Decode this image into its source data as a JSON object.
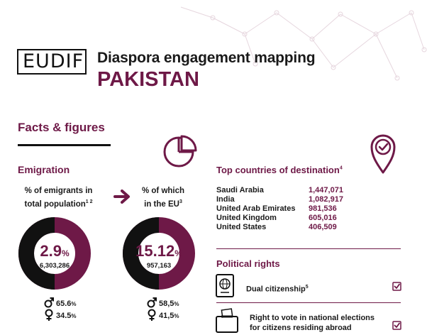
{
  "logo": {
    "text": "EUDIF"
  },
  "header": {
    "subtitle": "Diaspora engagement mapping",
    "country": "PAKISTAN"
  },
  "facts": {
    "title": "Facts & figures"
  },
  "emigration": {
    "title": "Emigration",
    "left": {
      "label_line1": "% of emigrants in",
      "label_line2": "total population",
      "label_sup": "1 2",
      "percent": "2.9",
      "percent_sign": "%",
      "count": "6,303,286",
      "male": "65.6",
      "female": "34.5",
      "share": 0.029
    },
    "right": {
      "label_line1": "% of which",
      "label_line2": "in the EU",
      "label_sup": "3",
      "percent": "15.12",
      "percent_sign": "%",
      "count": "957,163",
      "male": "58,5",
      "female": "41,5",
      "share": 0.1512
    },
    "unit": "%"
  },
  "destinations": {
    "title": "Top countries of destination",
    "title_sup": "4",
    "rows": [
      {
        "country": "Saudi Arabia",
        "value": "1,447,071"
      },
      {
        "country": "India",
        "value": "1,082,917"
      },
      {
        "country": "United Arab Emirates",
        "value": "981,536"
      },
      {
        "country": "United Kingdom",
        "value": "605,016"
      },
      {
        "country": "United States",
        "value": "406,509"
      }
    ]
  },
  "political": {
    "title": "Political rights",
    "dual": {
      "label": "Dual citizenship",
      "sup": "5"
    },
    "vote": {
      "line1": "Right to vote in national elections",
      "line2": "for citizens residing abroad"
    }
  },
  "colors": {
    "accent": "#6e1947",
    "dark": "#111111"
  },
  "icons": [
    "pie-chart-icon",
    "location-check-icon",
    "arrow-right-icon",
    "male-icon",
    "female-icon",
    "passport-icon",
    "ballot-box-icon",
    "checkbox-icon"
  ]
}
